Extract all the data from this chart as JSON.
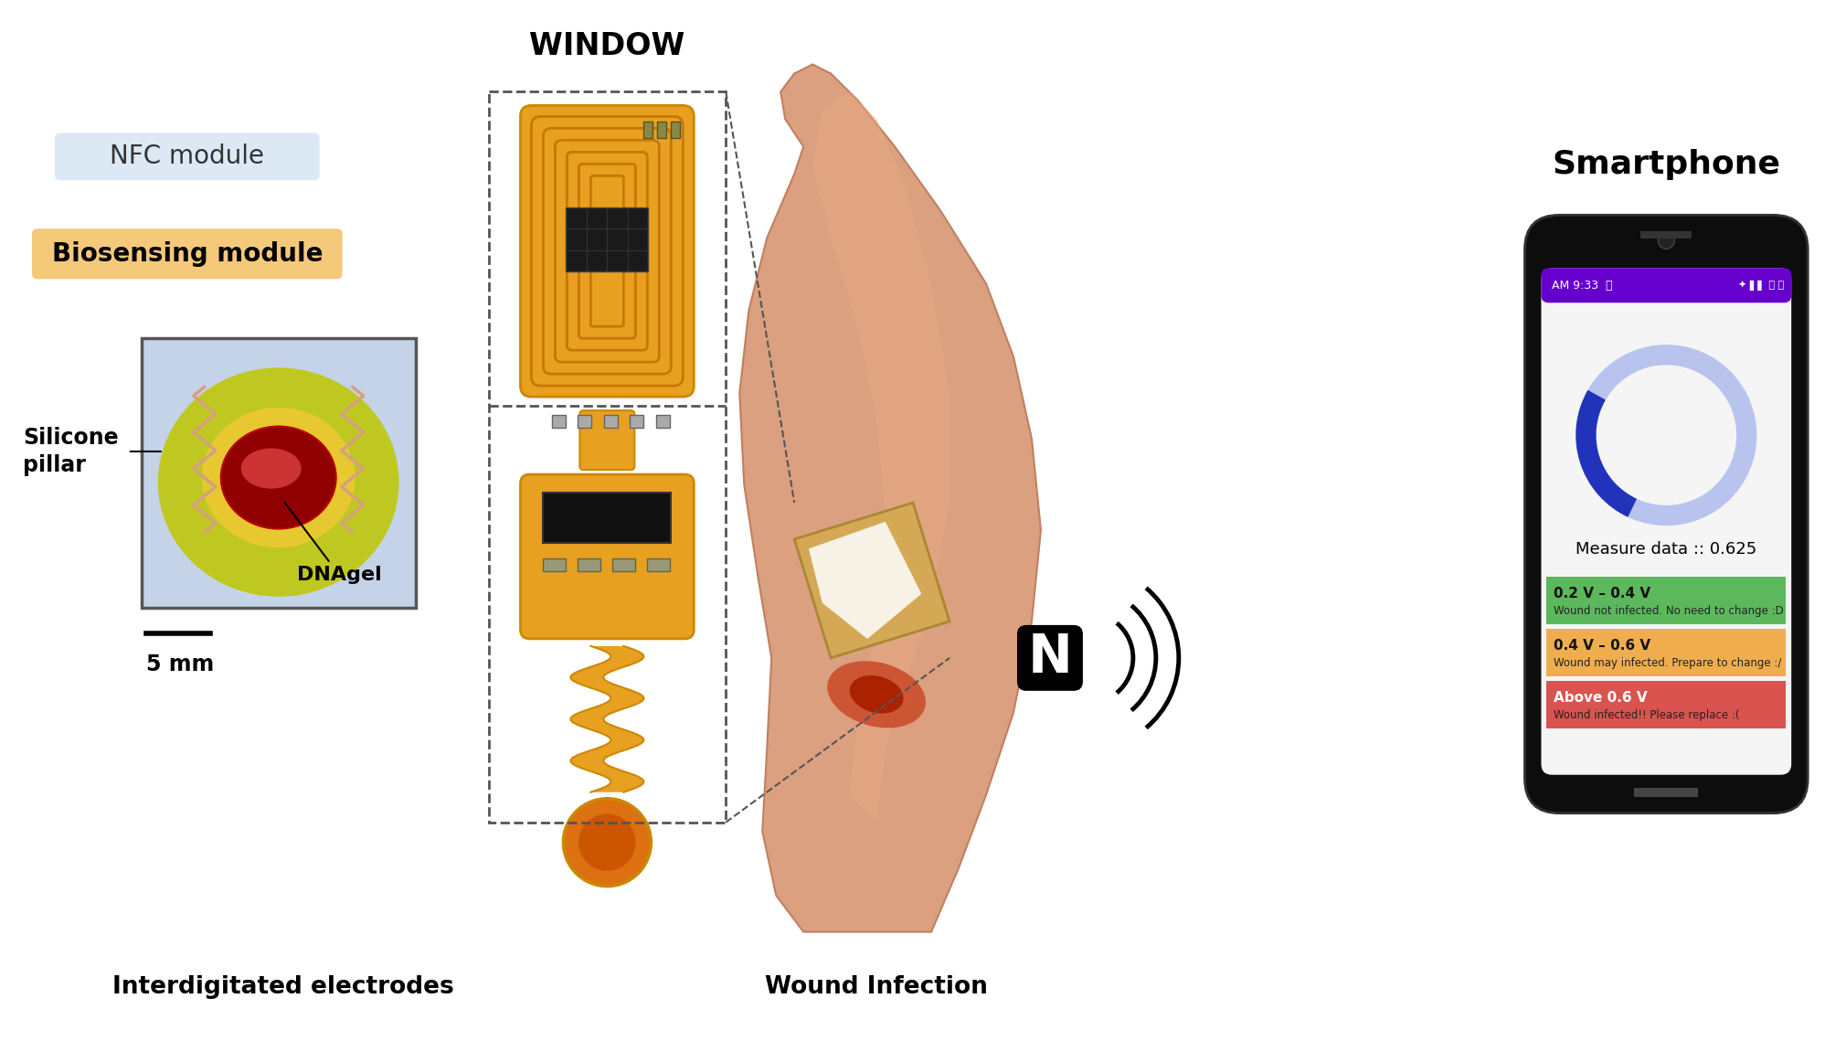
{
  "bg_color": "#ffffff",
  "nfc_label": "NFC module",
  "nfc_box_color": "#dce9f5",
  "biosensing_label": "Biosensing module",
  "biosensing_box_color": "#f5c97a",
  "window_label": "WINDOW",
  "silicone_label": "Silicone\npillar",
  "scale_label": "5 mm",
  "dnagel_label": "DNAgel",
  "interdigitated_label": "Interdigitated electrodes",
  "wound_infection_label": "Wound Infection",
  "smartphone_label": "Smartphone",
  "measure_data": "Measure data :: 0.625",
  "bar1_color": "#5cb85c",
  "bar1_label": "0.2 V – 0.4 V",
  "bar1_sublabel": "Wound not infected. No need to change :D",
  "bar2_color": "#f0ad4e",
  "bar2_label": "0.4 V – 0.6 V",
  "bar2_sublabel": "Wound may infected. Prepare to change :/",
  "bar3_color": "#d9534f",
  "bar3_label": "Above 0.6 V",
  "bar3_sublabel": "Wound infected!! Please replace :(",
  "phone_body_color": "#111111",
  "status_bar_color": "#6600cc",
  "circle_light": "#b8c4ee",
  "circle_dark": "#2233bb",
  "pcb_color": "#e8a020",
  "pcb_edge": "#cc8800",
  "arm_color": "#dba080",
  "arm_edge": "#c08060"
}
